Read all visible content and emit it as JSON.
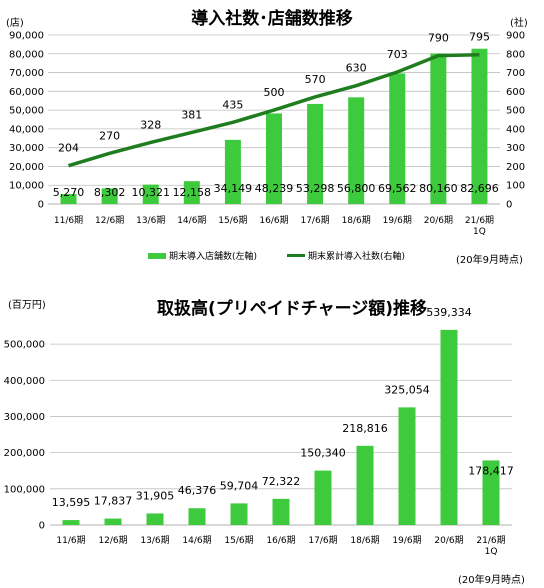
{
  "chart_data": [
    {
      "type": "bar",
      "title": "導入社数･店舗数推移",
      "y_unit_left": "(店)",
      "y_unit_right": "(社)",
      "categories": [
        "11/6期",
        "12/6期",
        "13/6期",
        "14/6期",
        "15/6期",
        "16/6期",
        "17/6期",
        "18/6期",
        "19/6期",
        "20/6期",
        "21/6期 1Q"
      ],
      "ylim_left": [
        0,
        90000
      ],
      "ylim_right": [
        0,
        900
      ],
      "yticks_left": [
        "0",
        "10,000",
        "20,000",
        "30,000",
        "40,000",
        "50,000",
        "60,000",
        "70,000",
        "80,000",
        "90,000"
      ],
      "yticks_right": [
        "0",
        "100",
        "200",
        "300",
        "400",
        "500",
        "600",
        "700",
        "800",
        "900"
      ],
      "grid": true,
      "legend_position": "bottom",
      "note": "(20年9月時点)",
      "series": [
        {
          "name": "期末導入店舗数(左軸)",
          "kind": "bar",
          "axis": "left",
          "values": [
            5270,
            8302,
            10321,
            12158,
            34149,
            48239,
            53298,
            56800,
            69562,
            80160,
            82696
          ],
          "labels": [
            "5,270",
            "8,302",
            "10,321",
            "12,158",
            "34,149",
            "48,239",
            "53,298",
            "56,800",
            "69,562",
            "80,160",
            "82,696"
          ]
        },
        {
          "name": "期末累計導入社数(右軸)",
          "kind": "line",
          "axis": "right",
          "values": [
            204,
            270,
            328,
            381,
            435,
            500,
            570,
            630,
            703,
            790,
            795
          ],
          "labels": [
            "204",
            "270",
            "328",
            "381",
            "435",
            "500",
            "570",
            "630",
            "703",
            "790",
            "795"
          ]
        }
      ]
    },
    {
      "type": "bar",
      "title": "取扱高(プリペイドチャージ額)推移",
      "y_unit_left": "(百万円)",
      "categories": [
        "11/6期",
        "12/6期",
        "13/6期",
        "14/6期",
        "15/6期",
        "16/6期",
        "17/6期",
        "18/6期",
        "19/6期",
        "20/6期",
        "21/6期 1Q"
      ],
      "ylim_left": [
        0,
        550000
      ],
      "yticks_left": [
        "0",
        "100,000",
        "200,000",
        "300,000",
        "400,000",
        "500,000"
      ],
      "grid": true,
      "note": "(20年9月時点)",
      "series": [
        {
          "kind": "bar",
          "values": [
            13595,
            17837,
            31905,
            46376,
            59704,
            72322,
            150340,
            218816,
            325054,
            539334,
            178417
          ],
          "labels": [
            "13,595",
            "17,837",
            "31,905",
            "46,376",
            "59,704",
            "72,322",
            "150,340",
            "218,816",
            "325,054",
            "539,334",
            "178,417"
          ]
        }
      ]
    }
  ],
  "colors": {
    "bar": "#3dcb3d",
    "line": "#1f7d1f",
    "grid": "#bfbfbf"
  }
}
